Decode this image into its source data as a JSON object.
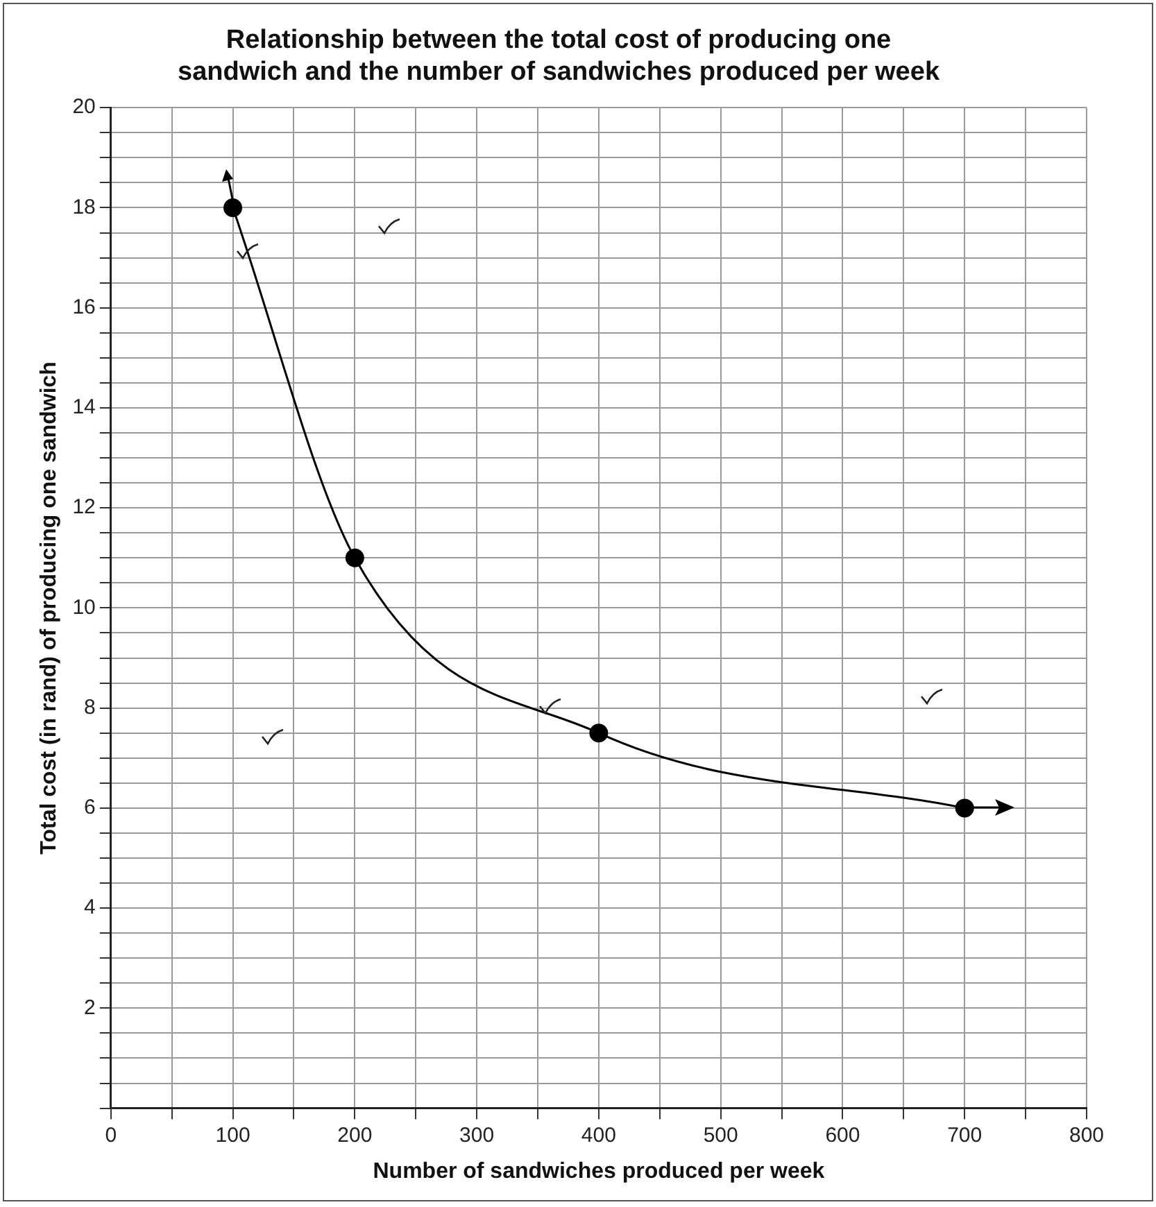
{
  "chart_data": {
    "type": "line",
    "title": "Relationship between the total cost of producing one sandwich and the number of sandwiches produced per week",
    "xlabel": "Number of sandwiches produced per week",
    "ylabel": "Total cost (in rand) of producing one sandwich",
    "series": [
      {
        "color": "#000000",
        "x": [
          100,
          200,
          400,
          700
        ],
        "values": [
          18,
          11,
          7.5,
          6
        ]
      }
    ],
    "xlim": [
      0,
      800
    ],
    "ylim": [
      0,
      20
    ],
    "xticks": [
      0,
      {
        "value": 50,
        "label": null
      },
      100,
      {
        "value": 150,
        "label": null
      },
      200,
      {
        "value": 250,
        "label": null
      },
      300,
      {
        "value": 350,
        "label": null
      },
      400,
      {
        "value": 450,
        "label": null
      },
      500,
      {
        "value": 550,
        "label": null
      },
      600,
      {
        "value": 650,
        "label": null
      },
      700,
      {
        "value": 750,
        "label": null
      },
      800
    ],
    "yticks": [
      {
        "value": 0,
        "label": null
      },
      {
        "value": 0.5,
        "label": null
      },
      {
        "value": 1,
        "label": null
      },
      {
        "value": 1.5,
        "label": null
      },
      2,
      {
        "value": 2.5,
        "label": null
      },
      {
        "value": 3,
        "label": null
      },
      {
        "value": 3.5,
        "label": null
      },
      4,
      {
        "value": 4.5,
        "label": null
      },
      {
        "value": 5,
        "label": null
      },
      {
        "value": 5.5,
        "label": null
      },
      6,
      {
        "value": 6.5,
        "label": null
      },
      {
        "value": 7,
        "label": null
      },
      {
        "value": 7.5,
        "label": null
      },
      8,
      {
        "value": 8.5,
        "label": null
      },
      {
        "value": 9,
        "label": null
      },
      {
        "value": 9.5,
        "label": null
      },
      10,
      {
        "value": 10.5,
        "label": null
      },
      {
        "value": 11,
        "label": null
      },
      {
        "value": 11.5,
        "label": null
      },
      12,
      {
        "value": 12.5,
        "label": null
      },
      {
        "value": 13,
        "label": null
      },
      {
        "value": 13.5,
        "label": null
      },
      14,
      {
        "value": 14.5,
        "label": null
      },
      {
        "value": 15,
        "label": null
      },
      {
        "value": 15.5,
        "label": null
      },
      16,
      {
        "value": 16.5,
        "label": null
      },
      {
        "value": 17,
        "label": null
      },
      {
        "value": 17.5,
        "label": null
      },
      18,
      {
        "value": 18.5,
        "label": null
      },
      {
        "value": 19,
        "label": null
      },
      {
        "value": 19.5,
        "label": null
      },
      20
    ],
    "grid": true,
    "legend": false,
    "marker": "circle",
    "line_style": "solid"
  }
}
